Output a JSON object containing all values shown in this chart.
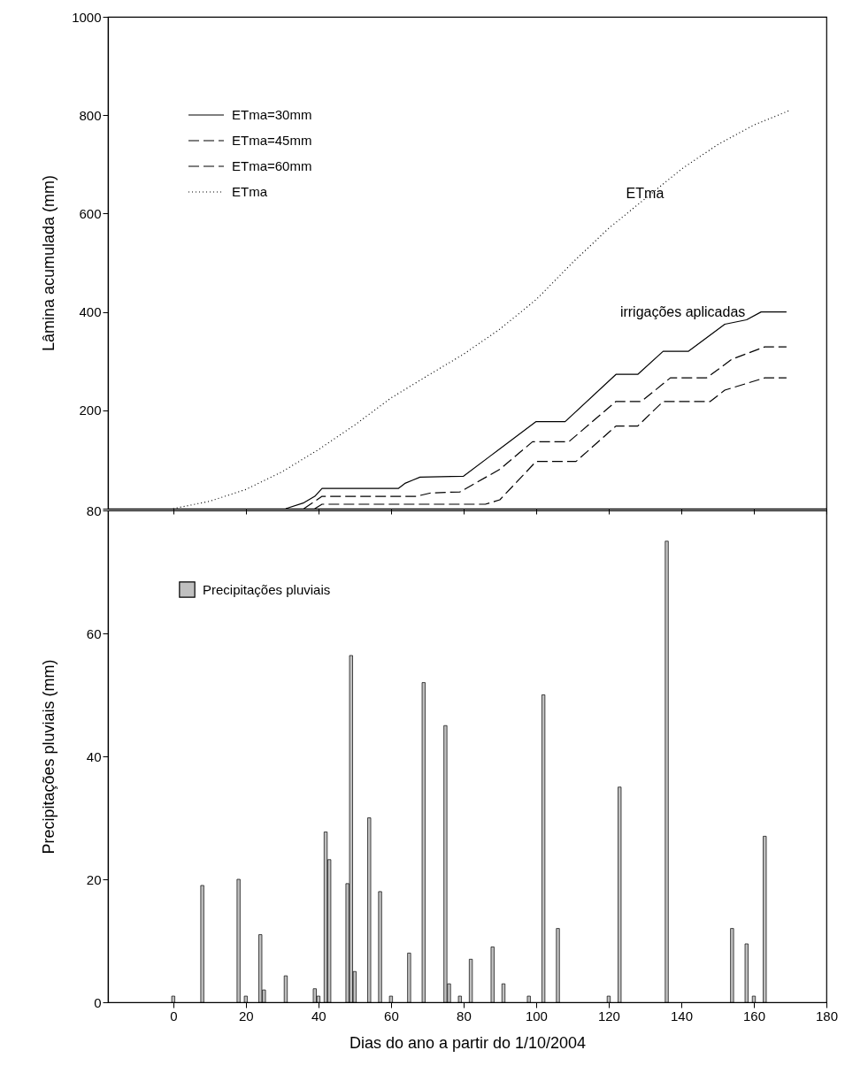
{
  "chart_data": [
    {
      "type": "line",
      "ylabel": "Lâmina acumulada (mm)",
      "xlim": [
        -18,
        180
      ],
      "xticks": [
        0,
        20,
        40,
        60,
        80,
        100,
        120,
        140,
        160,
        180
      ],
      "ylim": [
        0,
        1000
      ],
      "yticks": [
        {
          "value": 0,
          "label": null
        },
        200,
        400,
        600,
        800,
        1000
      ],
      "tick_labels": "y",
      "grid": false,
      "legend": "top left",
      "annotations": [
        {
          "text": "ETma",
          "x": 130,
          "y": 640
        },
        "irrigações aplicadas"
      ],
      "series": [
        {
          "name": "ETma=30mm",
          "color": "#000000",
          "line_style": "solid",
          "x": [
            31,
            36,
            39,
            41,
            62,
            64,
            66,
            68,
            80,
            87,
            100,
            108,
            122,
            128,
            135,
            142,
            152,
            158,
            162,
            169
          ],
          "values": [
            0,
            12,
            25,
            41,
            41,
            52,
            58,
            64,
            66,
            105,
            177,
            177,
            273,
            273,
            320,
            320,
            375,
            384,
            400,
            400
          ]
        },
        {
          "name": "ETma=45mm",
          "color": "#000000",
          "line_style": "dashed",
          "x": [
            36,
            41,
            67,
            71,
            79,
            90,
            99,
            109,
            122,
            129,
            137,
            147,
            154,
            163,
            169
          ],
          "values": [
            0,
            25,
            25,
            32,
            34,
            80,
            136,
            136,
            218,
            218,
            266,
            266,
            304,
            329,
            329
          ]
        },
        {
          "name": "ETma=60mm",
          "color": "#000000",
          "line_style": "dashed",
          "x": [
            39,
            41,
            86,
            90,
            100,
            111,
            122,
            128,
            135,
            148,
            152,
            163,
            169
          ],
          "values": [
            0,
            9,
            9,
            18,
            96,
            96,
            168,
            168,
            218,
            218,
            241,
            266,
            266
          ]
        },
        {
          "name": "ETma",
          "color": "#000000",
          "line_style": "dotted",
          "x": [
            0,
            10,
            20,
            30,
            40,
            50,
            60,
            70,
            80,
            90,
            100,
            110,
            120,
            130,
            140,
            150,
            160,
            170
          ],
          "values": [
            0,
            15,
            39,
            75,
            120,
            170,
            225,
            270,
            314,
            365,
            425,
            500,
            570,
            630,
            690,
            740,
            780,
            810
          ]
        }
      ]
    },
    {
      "type": "bar",
      "xlabel": "Dias do ano a partir do 1/10/2004",
      "ylabel": "Precipitações pluviais (mm)",
      "xlim": [
        -18,
        180
      ],
      "xticks": [
        0,
        20,
        40,
        60,
        80,
        100,
        120,
        140,
        160,
        180
      ],
      "ylim": [
        0,
        80
      ],
      "yticks": [
        0,
        20,
        40,
        60,
        80
      ],
      "grid": false,
      "legend": "top left",
      "series": [
        {
          "name": "Precipitações pluviais",
          "color": "#c0c0c0",
          "x": [
            0,
            8,
            18,
            20,
            24,
            25,
            31,
            39,
            40,
            42,
            43,
            48,
            49,
            50,
            54,
            57,
            60,
            65,
            69,
            75,
            76,
            79,
            82,
            88,
            91,
            98,
            102,
            106,
            120,
            123,
            136,
            154,
            158,
            160,
            163
          ],
          "values": [
            1,
            19,
            20,
            1,
            11,
            2,
            4.3,
            2.2,
            1,
            27.7,
            23.2,
            19.3,
            56.4,
            5,
            30,
            18,
            1,
            8,
            52,
            45,
            3,
            1,
            7,
            9,
            3,
            1,
            50,
            12,
            1,
            35,
            75,
            12,
            9.5,
            1,
            27
          ]
        }
      ]
    }
  ]
}
